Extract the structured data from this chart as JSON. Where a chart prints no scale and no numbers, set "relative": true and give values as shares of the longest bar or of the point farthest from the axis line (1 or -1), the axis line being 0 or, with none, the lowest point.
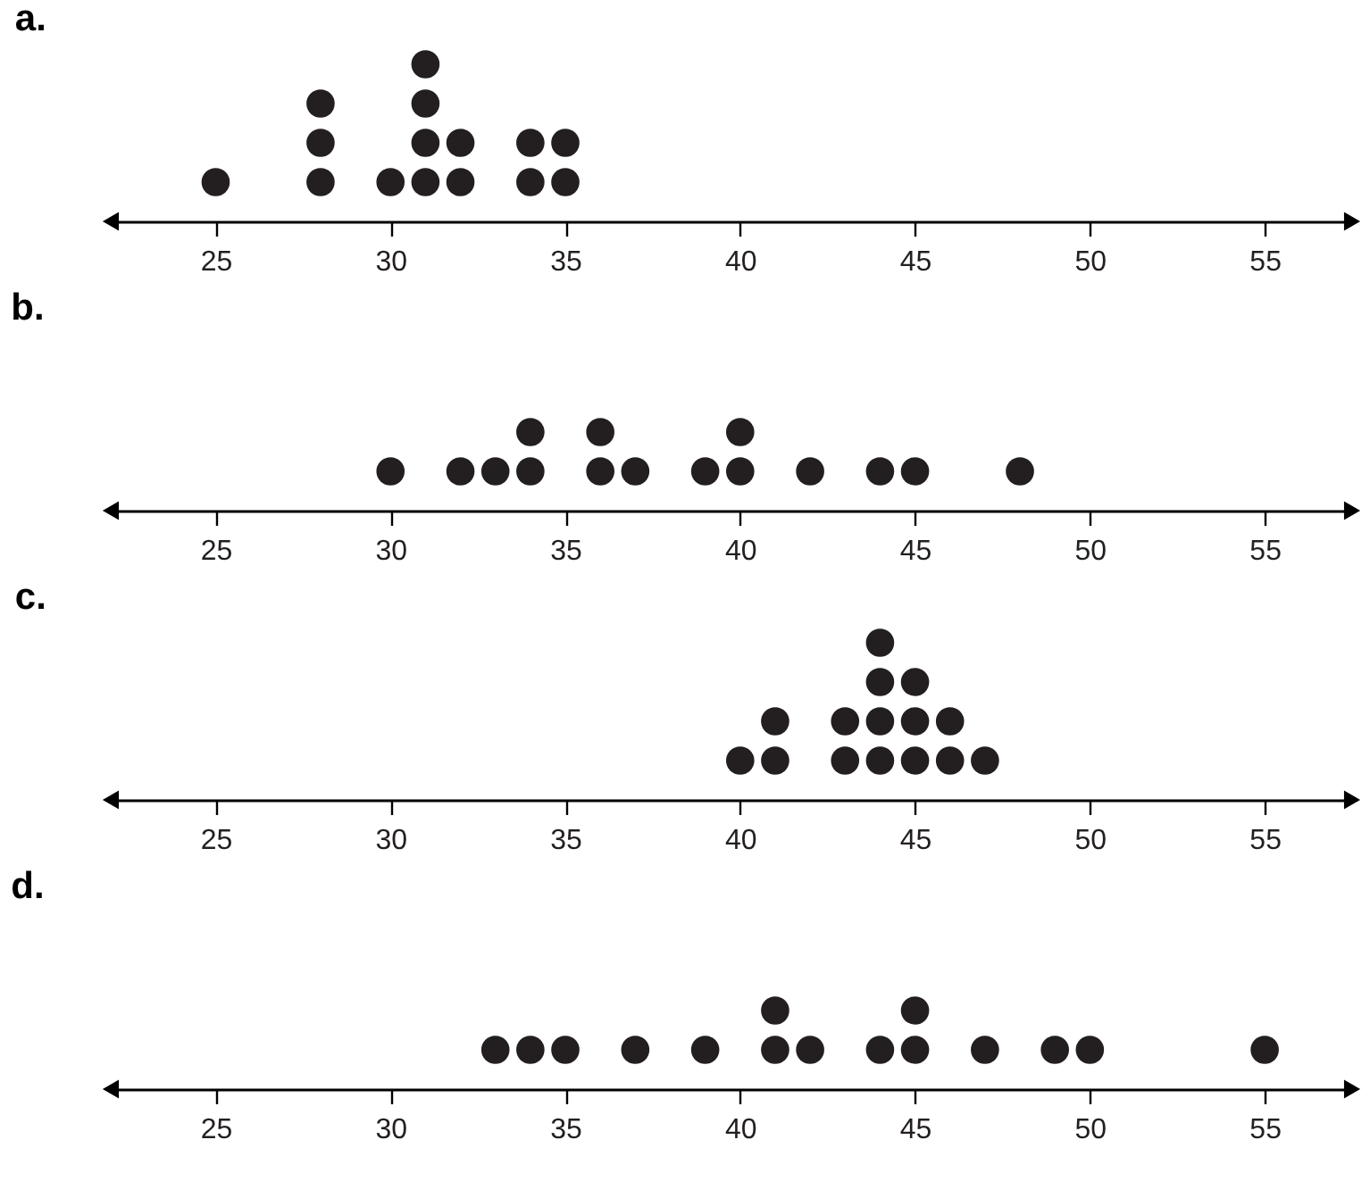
{
  "chart_data": [
    {
      "type": "scatter",
      "title": "a.",
      "marker": "circle",
      "relative": true,
      "tick_labels": "x",
      "xlim": [
        22,
        57.5
      ],
      "xticks": [
        25,
        30,
        35,
        40,
        45,
        50,
        55
      ],
      "series": [
        {
          "color": "#231f20",
          "x": [
            25,
            28,
            28,
            28,
            30,
            31,
            31,
            31,
            31,
            32,
            32,
            34,
            34,
            35,
            35
          ],
          "values": [
            0.25,
            0.25,
            0.5,
            0.75,
            0.25,
            0.25,
            0.5,
            0.75,
            1,
            0.25,
            0.5,
            0.25,
            0.5,
            0.25,
            0.5
          ]
        }
      ]
    },
    {
      "type": "scatter",
      "title": "b.",
      "marker": "circle",
      "relative": true,
      "tick_labels": "x",
      "xlim": [
        22,
        57.5
      ],
      "xticks": [
        25,
        30,
        35,
        40,
        45,
        50,
        55
      ],
      "series": [
        {
          "color": "#231f20",
          "x": [
            30,
            32,
            33,
            34,
            34,
            36,
            36,
            37,
            39,
            40,
            40,
            42,
            44,
            45,
            48
          ],
          "values": [
            0.5,
            0.5,
            0.5,
            0.5,
            1,
            0.5,
            1,
            0.5,
            0.5,
            0.5,
            1,
            0.5,
            0.5,
            0.5,
            0.5
          ]
        }
      ]
    },
    {
      "type": "scatter",
      "title": "c.",
      "marker": "circle",
      "relative": true,
      "tick_labels": "x",
      "xlim": [
        22,
        57.5
      ],
      "xticks": [
        25,
        30,
        35,
        40,
        45,
        50,
        55
      ],
      "series": [
        {
          "color": "#231f20",
          "x": [
            40,
            41,
            41,
            43,
            43,
            44,
            44,
            44,
            44,
            45,
            45,
            45,
            46,
            46,
            47
          ],
          "values": [
            0.25,
            0.25,
            0.5,
            0.25,
            0.5,
            0.25,
            0.5,
            0.75,
            1,
            0.25,
            0.5,
            0.75,
            0.25,
            0.5,
            0.25
          ]
        }
      ]
    },
    {
      "type": "scatter",
      "title": "d.",
      "marker": "circle",
      "relative": true,
      "tick_labels": "x",
      "xlim": [
        22,
        57.5
      ],
      "xticks": [
        25,
        30,
        35,
        40,
        45,
        50,
        55
      ],
      "series": [
        {
          "color": "#231f20",
          "x": [
            33,
            34,
            35,
            37,
            39,
            41,
            41,
            42,
            44,
            45,
            45,
            47,
            49,
            50,
            55
          ],
          "values": [
            0.5,
            0.5,
            0.5,
            0.5,
            0.5,
            0.5,
            1,
            0.5,
            0.5,
            0.5,
            1,
            0.5,
            0.5,
            0.5,
            0.5
          ]
        }
      ]
    }
  ]
}
